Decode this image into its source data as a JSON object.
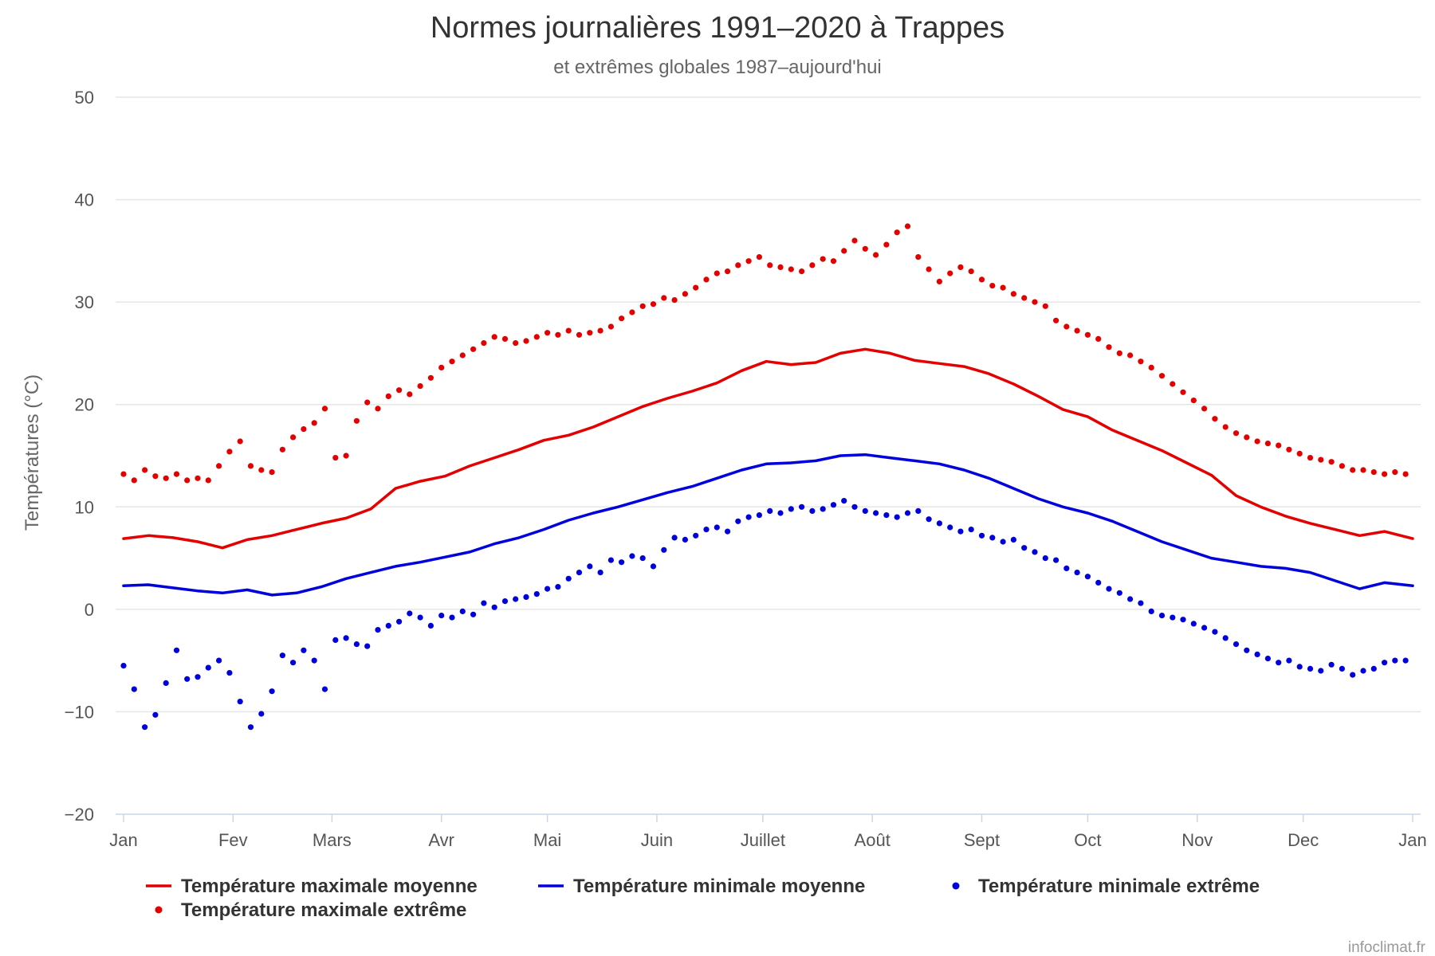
{
  "chart_data": {
    "type": "line",
    "title": "Normes journalières 1991–2020 à Trappes",
    "subtitle": "et extrêmes globales 1987–aujourd'hui",
    "ylabel": "Températures (°C)",
    "xlabel": "",
    "ylim": [
      -20,
      50
    ],
    "yticks": [
      -20,
      -10,
      0,
      10,
      20,
      30,
      40,
      50
    ],
    "xlim": [
      1,
      366
    ],
    "xticks": [
      {
        "day": 1,
        "label": "Jan"
      },
      {
        "day": 32,
        "label": "Fev"
      },
      {
        "day": 60,
        "label": "Mars"
      },
      {
        "day": 91,
        "label": "Avr"
      },
      {
        "day": 121,
        "label": "Mai"
      },
      {
        "day": 152,
        "label": "Juin"
      },
      {
        "day": 182,
        "label": "Juillet"
      },
      {
        "day": 213,
        "label": "Août"
      },
      {
        "day": 244,
        "label": "Sept"
      },
      {
        "day": 274,
        "label": "Oct"
      },
      {
        "day": 305,
        "label": "Nov"
      },
      {
        "day": 335,
        "label": "Dec"
      },
      {
        "day": 366,
        "label": "Jan"
      }
    ],
    "grid": true,
    "legend_position": "bottom",
    "credits": "infoclimat.fr",
    "series": [
      {
        "name": "Température maximale moyenne",
        "kind": "line",
        "color": "#e40000",
        "x": [
          1,
          8,
          15,
          22,
          29,
          36,
          43,
          50,
          57,
          64,
          71,
          78,
          85,
          92,
          99,
          106,
          113,
          120,
          127,
          134,
          141,
          148,
          155,
          162,
          169,
          176,
          183,
          190,
          197,
          204,
          211,
          218,
          225,
          232,
          239,
          246,
          253,
          260,
          267,
          274,
          281,
          288,
          295,
          302,
          309,
          316,
          323,
          330,
          337,
          344,
          351,
          358,
          366
        ],
        "y": [
          6.9,
          7.2,
          7.0,
          6.6,
          6.0,
          6.8,
          7.2,
          7.8,
          8.4,
          8.9,
          9.8,
          11.8,
          12.5,
          13.0,
          14.0,
          14.8,
          15.6,
          16.5,
          17.0,
          17.8,
          18.8,
          19.8,
          20.6,
          21.3,
          22.1,
          23.3,
          24.2,
          23.9,
          24.1,
          25.0,
          25.4,
          25.0,
          24.3,
          24.0,
          23.7,
          23.0,
          22.0,
          20.8,
          19.5,
          18.8,
          17.5,
          16.5,
          15.5,
          14.3,
          13.1,
          11.1,
          10.0,
          9.1,
          8.4,
          7.8,
          7.2,
          7.6,
          6.9
        ]
      },
      {
        "name": "Température minimale moyenne",
        "kind": "line",
        "color": "#0000dd",
        "x": [
          1,
          8,
          15,
          22,
          29,
          36,
          43,
          50,
          57,
          64,
          71,
          78,
          85,
          92,
          99,
          106,
          113,
          120,
          127,
          134,
          141,
          148,
          155,
          162,
          169,
          176,
          183,
          190,
          197,
          204,
          211,
          218,
          225,
          232,
          239,
          246,
          253,
          260,
          267,
          274,
          281,
          288,
          295,
          302,
          309,
          316,
          323,
          330,
          337,
          344,
          351,
          358,
          366
        ],
        "y": [
          2.3,
          2.4,
          2.1,
          1.8,
          1.6,
          1.9,
          1.4,
          1.6,
          2.2,
          3.0,
          3.6,
          4.2,
          4.6,
          5.1,
          5.6,
          6.4,
          7.0,
          7.8,
          8.7,
          9.4,
          10.0,
          10.7,
          11.4,
          12.0,
          12.8,
          13.6,
          14.2,
          14.3,
          14.5,
          15.0,
          15.1,
          14.8,
          14.5,
          14.2,
          13.6,
          12.8,
          11.8,
          10.8,
          10.0,
          9.4,
          8.6,
          7.6,
          6.6,
          5.8,
          5.0,
          4.6,
          4.2,
          4.0,
          3.6,
          2.8,
          2.0,
          2.6,
          2.3
        ]
      },
      {
        "name": "Température minimale extrême",
        "kind": "scatter",
        "color": "#0000dd",
        "x": [
          1,
          4,
          7,
          10,
          13,
          16,
          19,
          22,
          25,
          28,
          31,
          34,
          37,
          40,
          43,
          46,
          49,
          52,
          55,
          58,
          61,
          64,
          67,
          70,
          73,
          76,
          79,
          82,
          85,
          88,
          91,
          94,
          97,
          100,
          103,
          106,
          109,
          112,
          115,
          118,
          121,
          124,
          127,
          130,
          133,
          136,
          139,
          142,
          145,
          148,
          151,
          154,
          157,
          160,
          163,
          166,
          169,
          172,
          175,
          178,
          181,
          184,
          187,
          190,
          193,
          196,
          199,
          202,
          205,
          208,
          211,
          214,
          217,
          220,
          223,
          226,
          229,
          232,
          235,
          238,
          241,
          244,
          247,
          250,
          253,
          256,
          259,
          262,
          265,
          268,
          271,
          274,
          277,
          280,
          283,
          286,
          289,
          292,
          295,
          298,
          301,
          304,
          307,
          310,
          313,
          316,
          319,
          322,
          325,
          328,
          331,
          334,
          337,
          340,
          343,
          346,
          349,
          352,
          355,
          358,
          361,
          364
        ],
        "y": [
          -5.5,
          -7.8,
          -11.5,
          -10.3,
          -7.2,
          -4.0,
          -6.8,
          -6.6,
          -5.7,
          -5.0,
          -6.2,
          -9.0,
          -11.5,
          -10.2,
          -8.0,
          -4.5,
          -5.2,
          -4.0,
          -5.0,
          -7.8,
          -3.0,
          -2.8,
          -3.4,
          -3.6,
          -2.0,
          -1.6,
          -1.2,
          -0.4,
          -0.8,
          -1.6,
          -0.6,
          -0.8,
          -0.2,
          -0.5,
          0.6,
          0.2,
          0.8,
          1.0,
          1.2,
          1.5,
          2.0,
          2.2,
          3.0,
          3.6,
          4.2,
          3.6,
          4.8,
          4.6,
          5.2,
          5.0,
          4.2,
          5.8,
          7.0,
          6.8,
          7.2,
          7.8,
          8.0,
          7.6,
          8.6,
          9.0,
          9.2,
          9.6,
          9.4,
          9.8,
          10.0,
          9.6,
          9.8,
          10.2,
          10.6,
          10.0,
          9.6,
          9.4,
          9.2,
          9.0,
          9.4,
          9.6,
          8.8,
          8.4,
          8.0,
          7.6,
          7.8,
          7.2,
          7.0,
          6.6,
          6.8,
          6.0,
          5.6,
          5.0,
          4.8,
          4.0,
          3.6,
          3.2,
          2.6,
          2.0,
          1.6,
          1.0,
          0.6,
          -0.2,
          -0.6,
          -0.8,
          -1.0,
          -1.4,
          -1.8,
          -2.2,
          -2.8,
          -3.4,
          -4.0,
          -4.4,
          -4.8,
          -5.2,
          -5.0,
          -5.6,
          -5.8,
          -6.0,
          -5.4,
          -5.8,
          -6.4,
          -6.0,
          -5.8,
          -5.2,
          -5.0,
          -5.0
        ]
      },
      {
        "name": "Température maximale extrême",
        "kind": "scatter",
        "color": "#e40000",
        "x": [
          1,
          4,
          7,
          10,
          13,
          16,
          19,
          22,
          25,
          28,
          31,
          34,
          37,
          40,
          43,
          46,
          49,
          52,
          55,
          58,
          61,
          64,
          67,
          70,
          73,
          76,
          79,
          82,
          85,
          88,
          91,
          94,
          97,
          100,
          103,
          106,
          109,
          112,
          115,
          118,
          121,
          124,
          127,
          130,
          133,
          136,
          139,
          142,
          145,
          148,
          151,
          154,
          157,
          160,
          163,
          166,
          169,
          172,
          175,
          178,
          181,
          184,
          187,
          190,
          193,
          196,
          199,
          202,
          205,
          208,
          211,
          214,
          217,
          220,
          223,
          226,
          229,
          232,
          235,
          238,
          241,
          244,
          247,
          250,
          253,
          256,
          259,
          262,
          265,
          268,
          271,
          274,
          277,
          280,
          283,
          286,
          289,
          292,
          295,
          298,
          301,
          304,
          307,
          310,
          313,
          316,
          319,
          322,
          325,
          328,
          331,
          334,
          337,
          340,
          343,
          346,
          349,
          352,
          355,
          358,
          361,
          364
        ],
        "y": [
          13.2,
          12.6,
          13.6,
          13.0,
          12.8,
          13.2,
          12.6,
          12.8,
          12.6,
          14.0,
          15.4,
          16.4,
          14.0,
          13.6,
          13.4,
          15.6,
          16.8,
          17.6,
          18.2,
          19.6,
          14.8,
          15.0,
          18.4,
          20.2,
          19.6,
          20.8,
          21.4,
          21.0,
          21.8,
          22.6,
          23.6,
          24.2,
          24.8,
          25.4,
          26.0,
          26.6,
          26.4,
          26.0,
          26.2,
          26.6,
          27.0,
          26.8,
          27.2,
          26.8,
          27.0,
          27.2,
          27.6,
          28.4,
          29.0,
          29.6,
          29.8,
          30.4,
          30.2,
          30.8,
          31.4,
          32.2,
          32.8,
          33.0,
          33.6,
          34.0,
          34.4,
          33.6,
          33.4,
          33.2,
          33.0,
          33.6,
          34.2,
          34.0,
          35.0,
          36.0,
          35.2,
          34.6,
          35.6,
          36.8,
          37.4,
          34.4,
          33.2,
          32.0,
          32.8,
          33.4,
          33.0,
          32.2,
          31.6,
          31.4,
          30.8,
          30.4,
          30.0,
          29.6,
          28.2,
          27.6,
          27.2,
          26.8,
          26.4,
          25.6,
          25.0,
          24.8,
          24.2,
          23.6,
          22.8,
          22.0,
          21.2,
          20.4,
          19.6,
          18.6,
          17.8,
          17.2,
          16.8,
          16.4,
          16.2,
          16.0,
          15.6,
          15.2,
          14.8,
          14.6,
          14.4,
          14.0,
          13.6,
          13.6,
          13.4,
          13.2,
          13.4,
          13.2
        ]
      }
    ]
  }
}
